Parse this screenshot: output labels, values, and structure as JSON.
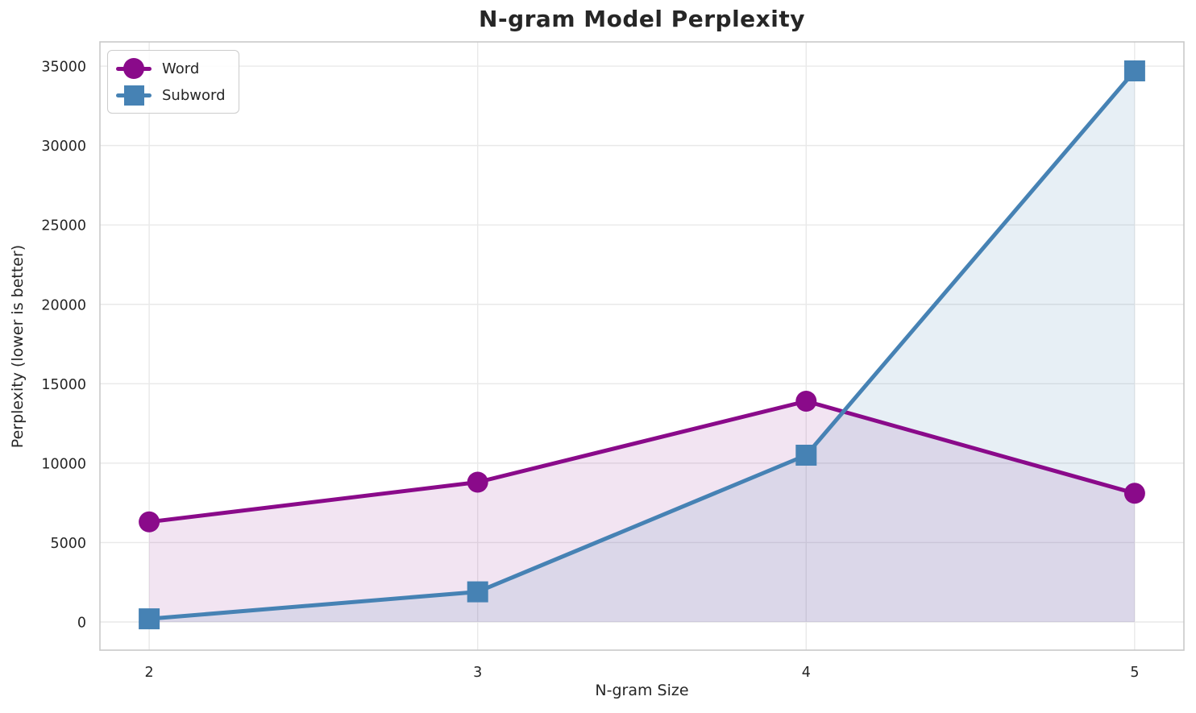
{
  "chart_data": {
    "type": "line",
    "title": "N-gram Model Perplexity",
    "xlabel": "N-gram Size",
    "ylabel": "Perplexity (lower is better)",
    "x": [
      2,
      3,
      4,
      5
    ],
    "xticks": [
      "2",
      "3",
      "4",
      "5"
    ],
    "yticks": [
      0,
      5000,
      10000,
      15000,
      20000,
      25000,
      30000,
      35000
    ],
    "xlim": [
      1.85,
      5.15
    ],
    "ylim": [
      -1775,
      36525
    ],
    "grid": true,
    "legend_position": "upper-left",
    "area_fill_baseline": 0,
    "series": [
      {
        "name": "Word",
        "marker": "circle",
        "color": "#8A0A8A",
        "fill_opacity": 0.11,
        "values": [
          6300,
          8800,
          13900,
          8100
        ]
      },
      {
        "name": "Subword",
        "marker": "square",
        "color": "#4682B4",
        "fill_opacity": 0.13,
        "values": [
          200,
          1900,
          10500,
          34700
        ]
      }
    ]
  }
}
